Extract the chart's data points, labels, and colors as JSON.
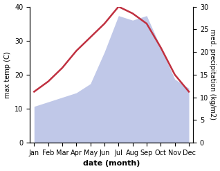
{
  "months": [
    "Jan",
    "Feb",
    "Mar",
    "Apr",
    "May",
    "Jun",
    "Jul",
    "Aug",
    "Sep",
    "Oct",
    "Nov",
    "Dec"
  ],
  "max_temp": [
    15,
    18,
    22,
    27,
    31,
    35,
    40,
    38,
    35,
    28,
    20,
    15
  ],
  "precipitation": [
    8,
    9,
    10,
    11,
    13,
    20,
    28,
    27,
    28,
    21,
    14,
    12
  ],
  "temp_color": "#c03040",
  "precip_fill_color": "#c0c8e8",
  "temp_ylim": [
    0,
    40
  ],
  "precip_ylim": [
    0,
    30
  ],
  "xlabel": "date (month)",
  "ylabel_left": "max temp (C)",
  "ylabel_right": "med. precipitation (kg/m2)",
  "background_color": "#ffffff",
  "label_fontsize": 8,
  "tick_fontsize": 7
}
